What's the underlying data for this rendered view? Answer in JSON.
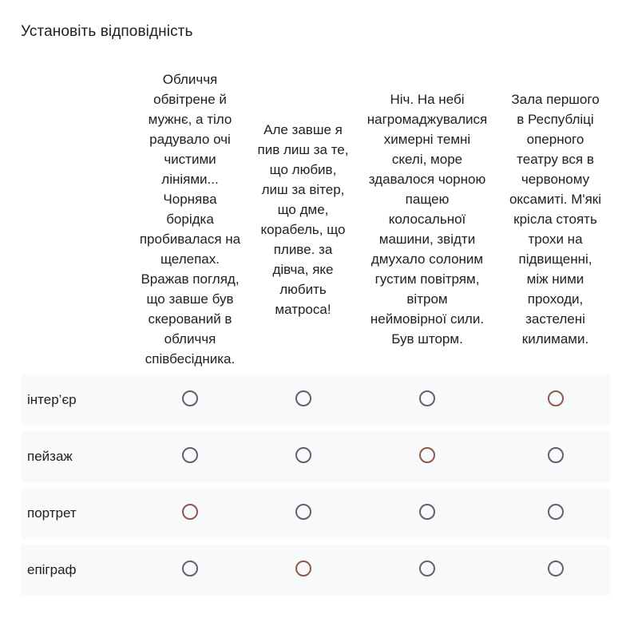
{
  "question": {
    "title": "Установіть відповідність"
  },
  "columns": [
    {
      "lines": [
        "Обличчя",
        "обвітрене й",
        "мужнє, а тіло",
        "радувало  очі",
        "чистими",
        "лініями...",
        "Чорнява",
        "борідка",
        "пробивалася на",
        "щелепах.",
        "Вражав погляд,",
        "що завше був",
        "скерований в",
        "обличчя",
        "співбесідника."
      ]
    },
    {
      "lines": [
        "Але завше я",
        "пив лиш за те,",
        "що любив,",
        "лиш за  вітер,",
        "що дме,",
        "корабель, що",
        "пливе. за",
        "дівча, яке",
        "любить",
        "матроса!"
      ]
    },
    {
      "lines": [
        "Ніч. На небі",
        "нагромаджувалися",
        "химерні темні",
        "скелі, море",
        "здавалося чорною",
        "пащею",
        "колосальної",
        "машини, звідти",
        "дмухало солоним",
        "густим повітрям,",
        "вітром",
        "неймовірної сили.",
        "Був шторм."
      ]
    },
    {
      "lines": [
        "Зала першого",
        "в Республіці",
        "оперного",
        "театру вся в",
        "червоному",
        "оксамиті. М'які",
        "крісла стоять",
        "трохи на",
        "підвищенні,",
        "між ними",
        "проходи,",
        "застелені",
        "килимами."
      ]
    }
  ],
  "rows": [
    {
      "label": "інтер’єр",
      "accent_column": 3
    },
    {
      "label": "пейзаж",
      "accent_column": 2
    },
    {
      "label": "портрет",
      "accent_column": 0
    },
    {
      "label": "епіграф",
      "accent_column": 1
    }
  ],
  "colors": {
    "radio": "#5f6368",
    "radio_accent": "#8d5a4c",
    "row_background": "#f8f9fa"
  }
}
